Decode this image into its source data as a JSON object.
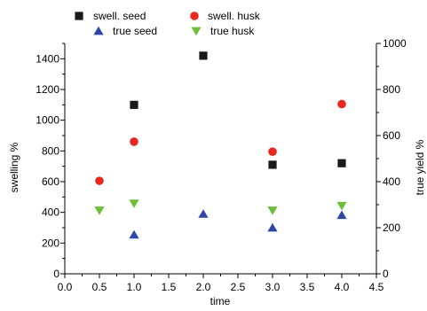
{
  "chart_data": {
    "type": "scatter",
    "title": "",
    "xlabel": "time",
    "ylabel_left": "swelling %",
    "ylabel_right": "true yield %",
    "xlim": [
      0.0,
      4.5
    ],
    "ylim_left": [
      0,
      1500
    ],
    "ylim_right": [
      0,
      1000
    ],
    "x_ticks": [
      "0.0",
      "0.5",
      "1.0",
      "1.5",
      "2.0",
      "2.5",
      "3.0",
      "3.5",
      "4.0",
      "4.5"
    ],
    "y_left_ticks": [
      "0",
      "200",
      "400",
      "600",
      "800",
      "1000",
      "1200",
      "1400"
    ],
    "y_right_ticks": [
      "0",
      "200",
      "400",
      "600",
      "800",
      "1000"
    ],
    "grid": false,
    "legend_position": "top",
    "series": [
      {
        "name": "swell. seed",
        "axis": "left",
        "marker": "square",
        "color": "#1a1a1a",
        "points": [
          [
            1.0,
            1100
          ],
          [
            2.0,
            1420
          ],
          [
            3.0,
            710
          ],
          [
            4.0,
            720
          ]
        ]
      },
      {
        "name": "swell. husk",
        "axis": "left",
        "marker": "circle",
        "color": "#e8281e",
        "points": [
          [
            0.5,
            605
          ],
          [
            1.0,
            860
          ],
          [
            3.0,
            795
          ],
          [
            4.0,
            1105
          ]
        ]
      },
      {
        "name": "true seed",
        "axis": "right",
        "marker": "triangle-up",
        "color": "#2e47a6",
        "points": [
          [
            1.0,
            170
          ],
          [
            2.0,
            260
          ],
          [
            3.0,
            200
          ],
          [
            4.0,
            255
          ]
        ]
      },
      {
        "name": "true husk",
        "axis": "right",
        "marker": "triangle-down",
        "color": "#6cbf3b",
        "points": [
          [
            0.5,
            275
          ],
          [
            1.0,
            305
          ],
          [
            3.0,
            275
          ],
          [
            4.0,
            295
          ]
        ]
      }
    ]
  }
}
